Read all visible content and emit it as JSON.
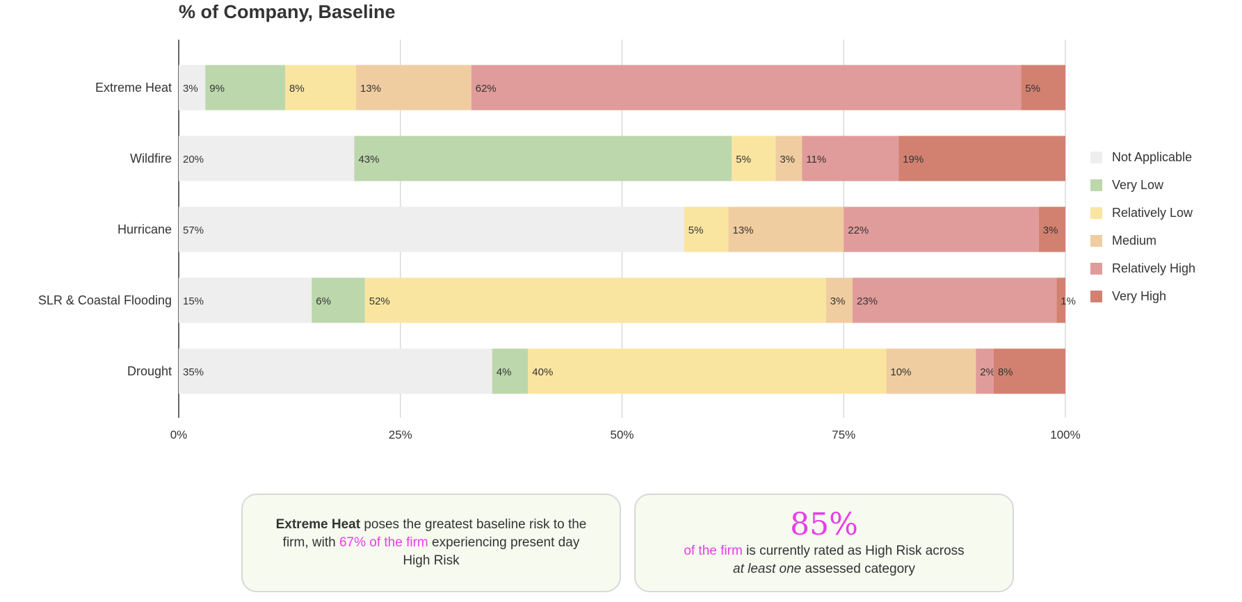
{
  "chart_data": {
    "type": "bar",
    "orientation": "horizontal",
    "stacked": true,
    "title": "% of Company, Baseline",
    "xlabel": "",
    "ylabel": "",
    "xlim": [
      0,
      100
    ],
    "x_ticks": [
      "0%",
      "25%",
      "50%",
      "75%",
      "100%"
    ],
    "categories": [
      "Extreme Heat",
      "Wildfire",
      "Hurricane",
      "SLR & Coastal Flooding",
      "Drought"
    ],
    "series": [
      {
        "name": "Not Applicable",
        "color": "#eeeeee",
        "values": [
          3,
          20,
          57,
          15,
          35
        ]
      },
      {
        "name": "Very Low",
        "color": "#bcd7ac",
        "values": [
          9,
          43,
          0,
          6,
          4
        ]
      },
      {
        "name": "Relatively Low",
        "color": "#fae5a0",
        "values": [
          8,
          5,
          5,
          52,
          40
        ]
      },
      {
        "name": "Medium",
        "color": "#f0cda0",
        "values": [
          13,
          3,
          13,
          3,
          10
        ]
      },
      {
        "name": "Relatively High",
        "color": "#e09c9a",
        "values": [
          62,
          11,
          22,
          23,
          2
        ]
      },
      {
        "name": "Very High",
        "color": "#d28170",
        "values": [
          5,
          19,
          3,
          1,
          8
        ]
      }
    ],
    "legend_position": "right",
    "grid": true
  },
  "callouts": {
    "left": {
      "bold": "Extreme Heat",
      "text1": " poses the greatest baseline risk to the firm, with ",
      "highlight": "67% of the firm",
      "text2": " experiencing present day High Risk"
    },
    "right": {
      "big": "85%",
      "highlight": "of the firm",
      "text1": " is currently rated as High Risk across",
      "italic": "at least one",
      "text2": " assessed category"
    }
  }
}
